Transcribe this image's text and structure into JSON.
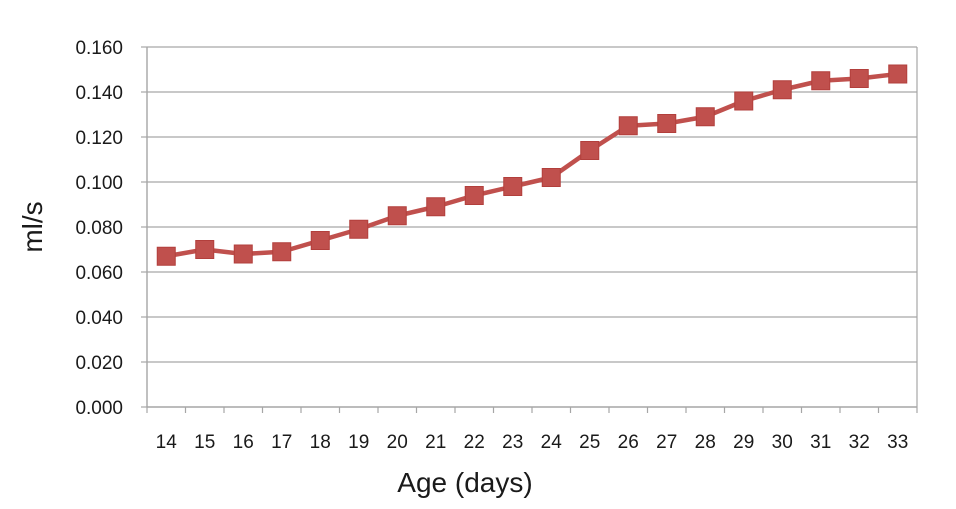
{
  "chart_data": {
    "type": "line",
    "title": "",
    "xlabel": "Age (days)",
    "ylabel": "ml/s",
    "x": [
      14,
      15,
      16,
      17,
      18,
      19,
      20,
      21,
      22,
      23,
      24,
      25,
      26,
      27,
      28,
      29,
      30,
      31,
      32,
      33
    ],
    "x_tick_labels": [
      "14",
      "15",
      "16",
      "17",
      "18",
      "19",
      "20",
      "21",
      "22",
      "23",
      "24",
      "25",
      "26",
      "27",
      "28",
      "29",
      "30",
      "31",
      "32",
      "33"
    ],
    "ylim": [
      0,
      0.16
    ],
    "y_ticks": [
      0,
      0.02,
      0.04,
      0.06,
      0.08,
      0.1,
      0.12,
      0.14,
      0.16
    ],
    "y_tick_labels": [
      "0.000",
      "0.020",
      "0.040",
      "0.060",
      "0.080",
      "0.100",
      "0.120",
      "0.140",
      "0.160"
    ],
    "grid": "horizontal",
    "legend": "none",
    "marker": "square",
    "series": [
      {
        "values": [
          0.067,
          0.07,
          0.068,
          0.069,
          0.074,
          0.079,
          0.085,
          0.089,
          0.094,
          0.098,
          0.102,
          0.114,
          0.125,
          0.126,
          0.129,
          0.136,
          0.141,
          0.145,
          0.146,
          0.148
        ],
        "color": "#c0504d"
      }
    ],
    "gridline_color": "#a6a6a6",
    "axis_color": "#a6a6a6"
  }
}
